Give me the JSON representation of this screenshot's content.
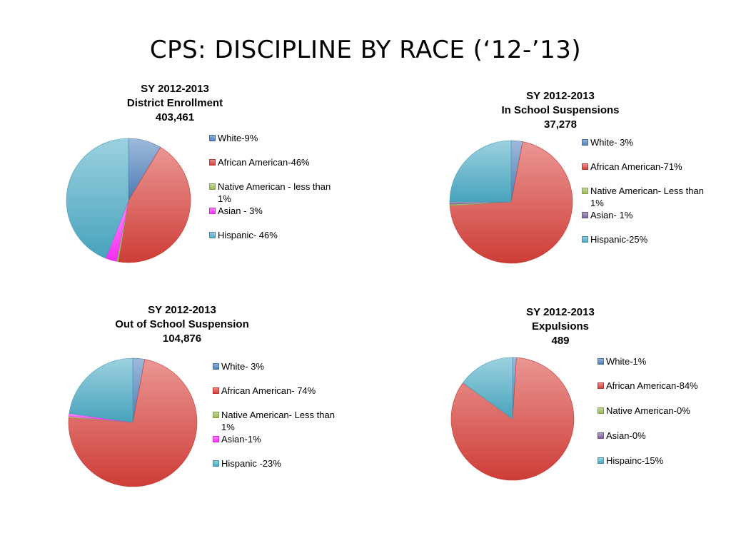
{
  "slide_title": "CPS: DISCIPLINE BY RACE (‘12-’13)",
  "colors": {
    "white": "#4f81bd",
    "african_american": "#d9403a",
    "native_american": "#9bbb59",
    "asian_magenta": "#ff30ff",
    "asian_purple": "#8064a2",
    "hispanic": "#4bacc6"
  },
  "chart_data": [
    {
      "type": "pie",
      "title_lines": [
        "SY 2012-2013",
        "District Enrollment",
        "403,461"
      ],
      "labels": [
        "White-9%",
        "African American-46%",
        "Native American - less than 1%",
        "Asian - 3%",
        "Hispanic- 46%"
      ],
      "values": [
        9,
        46,
        0.5,
        3,
        46
      ],
      "colors": [
        "#4f81bd",
        "#d9403a",
        "#9bbb59",
        "#ff30ff",
        "#4bacc6"
      ],
      "legend": "right"
    },
    {
      "type": "pie",
      "title_lines": [
        "SY 2012-2013",
        "In School Suspensions",
        "37,278"
      ],
      "labels": [
        "White- 3%",
        "African American-71%",
        "Native American- Less than 1%",
        "Asian- 1%",
        "Hispanic-25%"
      ],
      "values": [
        3,
        71,
        0.4,
        0.6,
        25
      ],
      "colors": [
        "#4f81bd",
        "#d9403a",
        "#9bbb59",
        "#8064a2",
        "#4bacc6"
      ],
      "legend": "right"
    },
    {
      "type": "pie",
      "title_lines": [
        "SY 2012-2013",
        "Out of School Suspension",
        "104,876"
      ],
      "labels": [
        "White- 3%",
        "African American- 74%",
        "Native American- Less than 1%",
        "Asian-1%",
        "Hispanic -23%"
      ],
      "values": [
        3,
        74,
        0.3,
        0.7,
        23
      ],
      "colors": [
        "#4f81bd",
        "#d9403a",
        "#9bbb59",
        "#ff30ff",
        "#4bacc6"
      ],
      "legend": "right"
    },
    {
      "type": "pie",
      "title_lines": [
        "SY 2012-2013",
        "Expulsions",
        "489"
      ],
      "labels": [
        "White-1%",
        "African American-84%",
        "Native American-0%",
        "Asian-0%",
        "Hispainc-15%"
      ],
      "values": [
        1,
        84,
        0,
        0,
        15
      ],
      "colors": [
        "#4f81bd",
        "#d9403a",
        "#9bbb59",
        "#8064a2",
        "#4bacc6"
      ],
      "legend": "right"
    }
  ]
}
